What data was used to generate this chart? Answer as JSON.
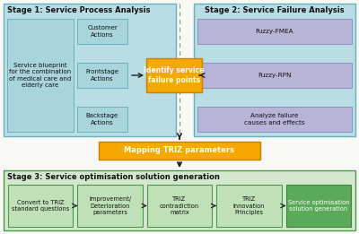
{
  "bg_color": "#f8f8f4",
  "stage1_bg": "#b8dde4",
  "stage2_bg": "#b8dde4",
  "stage3_bg": "#d4e8d0",
  "box_inner_blue": "#a8d4dc",
  "box_purple": "#b8b4d8",
  "box_orange": "#f5a800",
  "box_orange_border": "#c88000",
  "box_green_light": "#c0e0b8",
  "box_green_dark": "#5aaa5a",
  "box_green_dark_border": "#3a8a3a",
  "border_blue": "#6ab0bc",
  "border_purple": "#9090c0",
  "border_green": "#4a9a4a",
  "dashed_color": "#999999",
  "arrow_color": "#222222",
  "text_dark": "#111111",
  "text_white": "#ffffff",
  "stage1_title": "Stage 1: Service Process Analysis",
  "stage2_title": "Stage 2: Service Failure Analysis",
  "stage3_title": "Stage 3: Service optimisation solution generation",
  "blueprint_text": "Service blueprint\nfor the combination\nof medical care and\nelderly care",
  "customer_text": "Customer\nActions",
  "frontstage_text": "Frontstage\nActions",
  "backstage_text": "Backstage\nActions",
  "identify_text": "Identify service\nfailure points",
  "fuzzy_fmea_text": "Fuzzy-FMEA",
  "fuzzy_rpn_text": "Fuzzy-RPN",
  "analyze_text": "Analyze failure\ncauses and effects",
  "mapping_text": "Mapping TRIZ parameters",
  "convert_text": "Convert to TRIZ\nstandard questions",
  "improvement_text": "Improvement/\nDeterioration\nparameters",
  "contradiction_text": "TRIZ\ncontradiction\nmatrix",
  "innovation_text": "TRIZ\nInnovation\nPrinciples",
  "service_opt_text": "Service optimisation\nsolution generation",
  "figw": 4.0,
  "figh": 2.61,
  "dpi": 100
}
